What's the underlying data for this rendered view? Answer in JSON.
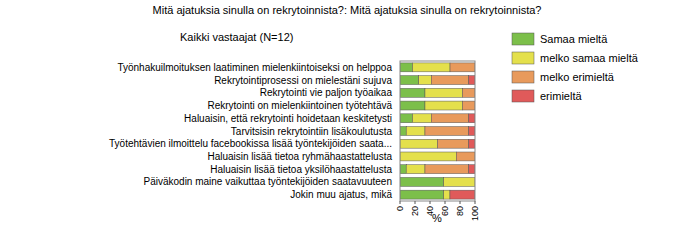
{
  "chart_data": {
    "type": "bar",
    "orientation": "horizontal",
    "stacked": true,
    "grid": false,
    "legend": "right",
    "title": "Mitä ajatuksia sinulla on rekrytoinnista?: Mitä ajatuksia sinulla on rekrytoinnista?",
    "subtitle": "Kaikki vastaajat (N=12)",
    "x_label": "%",
    "categories": [
      "Työnhakuilmoituksen laatiminen mielenkiintoiseksi on helppoa",
      "Rekrytointiprosessi on mielestäni sujuva",
      "Rekrytointi vie paljon työaikaa",
      "Rekrytointi on mielenkiintoinen työtehtävä",
      "Haluaisin, että rekrytointi hoidetaan keskitetysti",
      "Tarvitsisin rekrytointiin lisäkoulutusta",
      "Työtehtävien ilmoittelu facebookissa lisää työntekijöiden saata...",
      "Haluaisin lisää tietoa ryhmähaastattelusta",
      "Haluaisin lisää tietoa yksilöhaastattelusta",
      "Päiväkodin maine vaikuttaa työntekijöiden saatavuuteen",
      "Jokin muu ajatus, mikä"
    ],
    "series": [
      {
        "name": "Samaa mieltä",
        "color": "#7cbf4a",
        "values": [
          16.7,
          25,
          33.3,
          33.3,
          16.7,
          8.3,
          0,
          0,
          8.3,
          58.3,
          58.3
        ]
      },
      {
        "name": "melko samaa mieltä",
        "color": "#e4e04c",
        "values": [
          50,
          16.7,
          50,
          50,
          25,
          25,
          50,
          75,
          25,
          41.7,
          8.3
        ]
      },
      {
        "name": "melko erimieltä",
        "color": "#e89a5c",
        "values": [
          33.3,
          50,
          16.7,
          16.7,
          50,
          58.3,
          41.7,
          25,
          58.3,
          0,
          0
        ]
      },
      {
        "name": "erimieltä",
        "color": "#e05a5a",
        "values": [
          0,
          8.3,
          0,
          0,
          8.3,
          8.3,
          8.3,
          0,
          8.3,
          0,
          33.3
        ]
      }
    ],
    "xlim": [
      0,
      100
    ],
    "xticks": [
      0,
      20,
      40,
      60,
      80,
      100
    ]
  }
}
